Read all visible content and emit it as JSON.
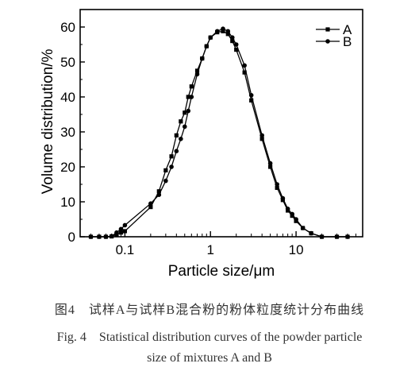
{
  "chart_data": {
    "type": "line",
    "xlabel": "Particle size/μm",
    "ylabel": "Volume distribution/%",
    "x_scale": "log",
    "xlim": [
      0.03,
      60
    ],
    "ylim": [
      0,
      65
    ],
    "x_ticks": [
      0.1,
      1,
      10
    ],
    "x_tick_labels": [
      "0.1",
      "1",
      "10"
    ],
    "y_ticks": [
      0,
      10,
      20,
      30,
      40,
      50,
      60
    ],
    "y_tick_labels": [
      "0",
      "10",
      "20",
      "30",
      "40",
      "50",
      "60"
    ],
    "grid": false,
    "legend_position": "top-right",
    "series": [
      {
        "name": "A",
        "marker": "square",
        "color": "#000000",
        "points": [
          [
            0.04,
            0
          ],
          [
            0.05,
            0
          ],
          [
            0.06,
            0
          ],
          [
            0.07,
            0.1
          ],
          [
            0.08,
            0.7
          ],
          [
            0.09,
            1.2
          ],
          [
            0.1,
            1.6
          ],
          [
            0.2,
            8.5
          ],
          [
            0.25,
            13
          ],
          [
            0.3,
            19
          ],
          [
            0.35,
            23
          ],
          [
            0.4,
            29
          ],
          [
            0.45,
            33
          ],
          [
            0.5,
            35.5
          ],
          [
            0.55,
            40
          ],
          [
            0.6,
            43
          ],
          [
            0.7,
            47.5
          ],
          [
            0.8,
            51
          ],
          [
            0.9,
            54.5
          ],
          [
            1.0,
            57
          ],
          [
            1.2,
            58.5
          ],
          [
            1.4,
            58.8
          ],
          [
            1.6,
            58
          ],
          [
            1.8,
            56
          ],
          [
            2.0,
            53.5
          ],
          [
            2.5,
            47
          ],
          [
            3.0,
            39
          ],
          [
            4.0,
            28
          ],
          [
            5.0,
            20
          ],
          [
            6.0,
            14
          ],
          [
            7.0,
            10.5
          ],
          [
            8.0,
            7.5
          ],
          [
            9.0,
            6
          ],
          [
            10.0,
            4.5
          ],
          [
            12.0,
            2.5
          ],
          [
            15.0,
            1
          ],
          [
            20.0,
            0
          ],
          [
            30.0,
            0
          ],
          [
            40.0,
            0
          ]
        ]
      },
      {
        "name": "B",
        "marker": "circle",
        "color": "#000000",
        "points": [
          [
            0.04,
            0
          ],
          [
            0.05,
            0
          ],
          [
            0.06,
            0
          ],
          [
            0.07,
            0.2
          ],
          [
            0.08,
            1.2
          ],
          [
            0.09,
            2.2
          ],
          [
            0.1,
            3.3
          ],
          [
            0.2,
            9.5
          ],
          [
            0.25,
            12
          ],
          [
            0.3,
            16
          ],
          [
            0.35,
            20
          ],
          [
            0.4,
            24.5
          ],
          [
            0.45,
            28
          ],
          [
            0.5,
            31.5
          ],
          [
            0.55,
            36
          ],
          [
            0.6,
            40
          ],
          [
            0.7,
            46.5
          ],
          [
            0.8,
            51
          ],
          [
            0.9,
            54.5
          ],
          [
            1.0,
            57
          ],
          [
            1.2,
            58.8
          ],
          [
            1.4,
            59.5
          ],
          [
            1.6,
            58.8
          ],
          [
            1.8,
            57
          ],
          [
            2.0,
            55
          ],
          [
            2.5,
            49
          ],
          [
            3.0,
            40.5
          ],
          [
            4.0,
            29
          ],
          [
            5.0,
            21
          ],
          [
            6.0,
            15
          ],
          [
            7.0,
            11
          ],
          [
            8.0,
            8
          ],
          [
            9.0,
            6.5
          ],
          [
            10.0,
            5
          ],
          [
            12.0,
            2.5
          ],
          [
            15.0,
            1
          ],
          [
            20.0,
            0
          ],
          [
            30.0,
            0
          ],
          [
            40.0,
            0
          ]
        ]
      }
    ]
  },
  "caption": {
    "cn": "图4　试样A与试样B混合粉的粉体粒度统计分布曲线",
    "en_line1": "Fig. 4　Statistical distribution curves of the powder particle",
    "en_line2": "size of mixtures A and B"
  }
}
